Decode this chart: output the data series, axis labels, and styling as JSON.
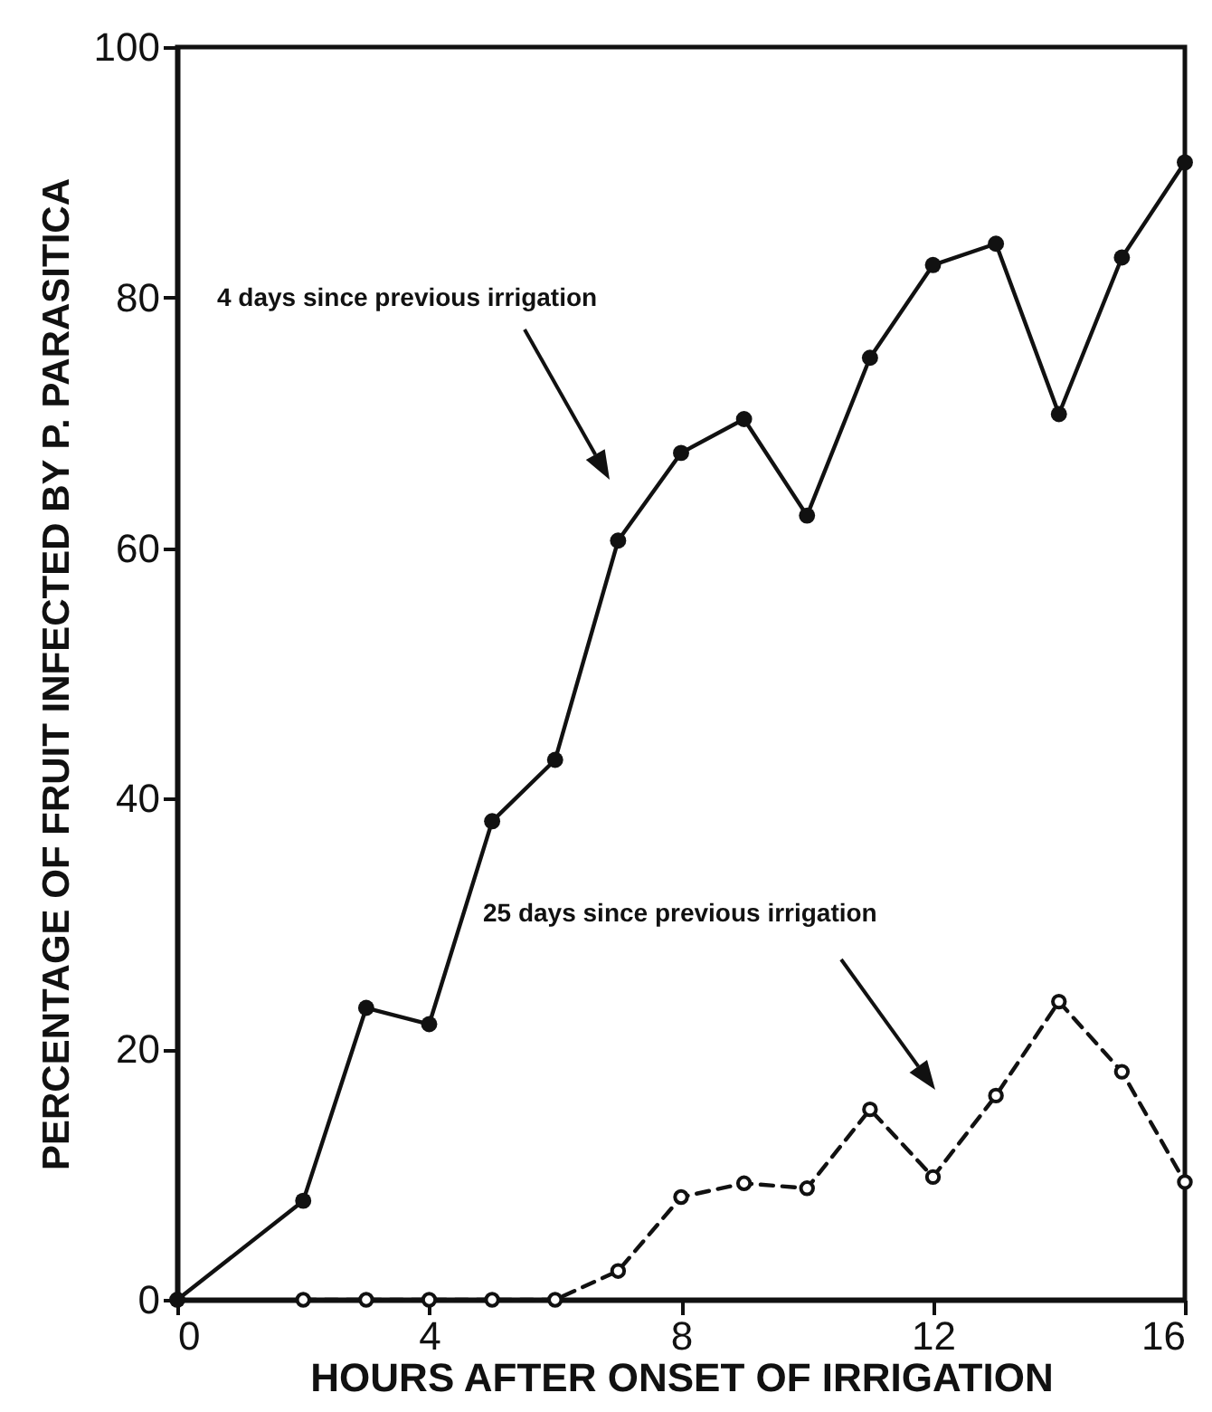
{
  "chart_data": {
    "type": "line",
    "xlabel": "HOURS AFTER ONSET OF IRRIGATION",
    "ylabel": "PERCENTAGE OF FRUIT INFECTED BY P. PARASITICA",
    "xlim": [
      0,
      16
    ],
    "xticks": [
      0,
      4,
      8,
      12,
      16
    ],
    "ylim": [
      0,
      100
    ],
    "yticks": [
      0,
      20,
      40,
      60,
      80,
      100
    ],
    "marker": "circle",
    "series": [
      {
        "color": "#111111",
        "line_style": "solid",
        "x": [
          0,
          2,
          3,
          4,
          5,
          6,
          7,
          8,
          9,
          10,
          11,
          12,
          13,
          14,
          15,
          16
        ],
        "values": [
          0,
          7.9,
          23.3,
          22.0,
          38.2,
          43.1,
          60.6,
          67.6,
          70.3,
          62.6,
          75.2,
          82.6,
          84.3,
          70.7,
          83.2,
          90.8
        ]
      },
      {
        "color": "#111111",
        "line_style": "dashed",
        "x": [
          2,
          3,
          4,
          5,
          6,
          7,
          8,
          9,
          10,
          11,
          12,
          13,
          14,
          15,
          16
        ],
        "values": [
          0,
          0,
          0,
          0,
          0,
          2.3,
          8.2,
          9.3,
          8.9,
          15.2,
          9.8,
          16.3,
          23.8,
          18.2,
          9.4
        ]
      }
    ],
    "annotations": [
      "4 days since previous irrigation",
      "25 days since previous irrigation"
    ]
  }
}
